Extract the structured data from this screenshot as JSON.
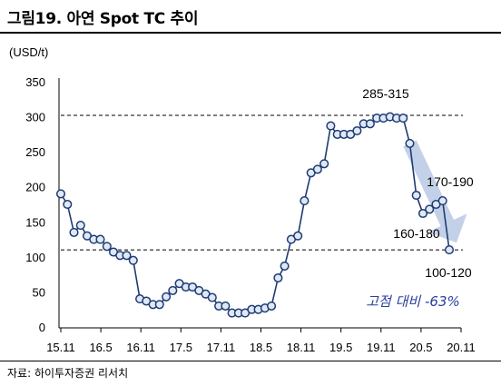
{
  "header": {
    "title": "그림19. 아연 Spot TC 추이"
  },
  "footer": {
    "source": "자료: 하이투자증권 리서치"
  },
  "chart_data": {
    "type": "line",
    "title": "그림19. 아연 Spot TC 추이",
    "ylabel": "(USD/t)",
    "xlabel": "",
    "ylim": [
      0,
      350
    ],
    "yticks": [
      0,
      50,
      100,
      150,
      200,
      250,
      300,
      350
    ],
    "x_tick_labels": [
      "15.11",
      "16.5",
      "16.11",
      "17.5",
      "17.11",
      "18.5",
      "18.11",
      "19.5",
      "19.11",
      "20.5",
      "20.11"
    ],
    "reference_lines": [
      302,
      110
    ],
    "series": [
      {
        "name": "",
        "color": "#1f3b73",
        "marker_fill": "#dfe9f5",
        "values": [
          190,
          175,
          135,
          145,
          130,
          125,
          125,
          115,
          107,
          102,
          102,
          95,
          40,
          37,
          32,
          32,
          43,
          52,
          62,
          57,
          57,
          52,
          47,
          42,
          30,
          30,
          20,
          20,
          20,
          25,
          25,
          27,
          30,
          70,
          87,
          125,
          130,
          180,
          220,
          225,
          233,
          287,
          275,
          275,
          275,
          280,
          290,
          290,
          298,
          298,
          300,
          298,
          298,
          262,
          188,
          162,
          168,
          175,
          180,
          110
        ]
      }
    ],
    "annotations": [
      {
        "text": "285-315",
        "value": 300
      },
      {
        "text": "170-190",
        "value": 180
      },
      {
        "text": "160-180",
        "value": 162
      },
      {
        "text": "100-120",
        "value": 110
      },
      {
        "text": "고점 대비 -63%",
        "style": "handwritten"
      }
    ],
    "arrow": {
      "from_value": 262,
      "to_value": 110,
      "color": "#b8c9e4"
    }
  }
}
